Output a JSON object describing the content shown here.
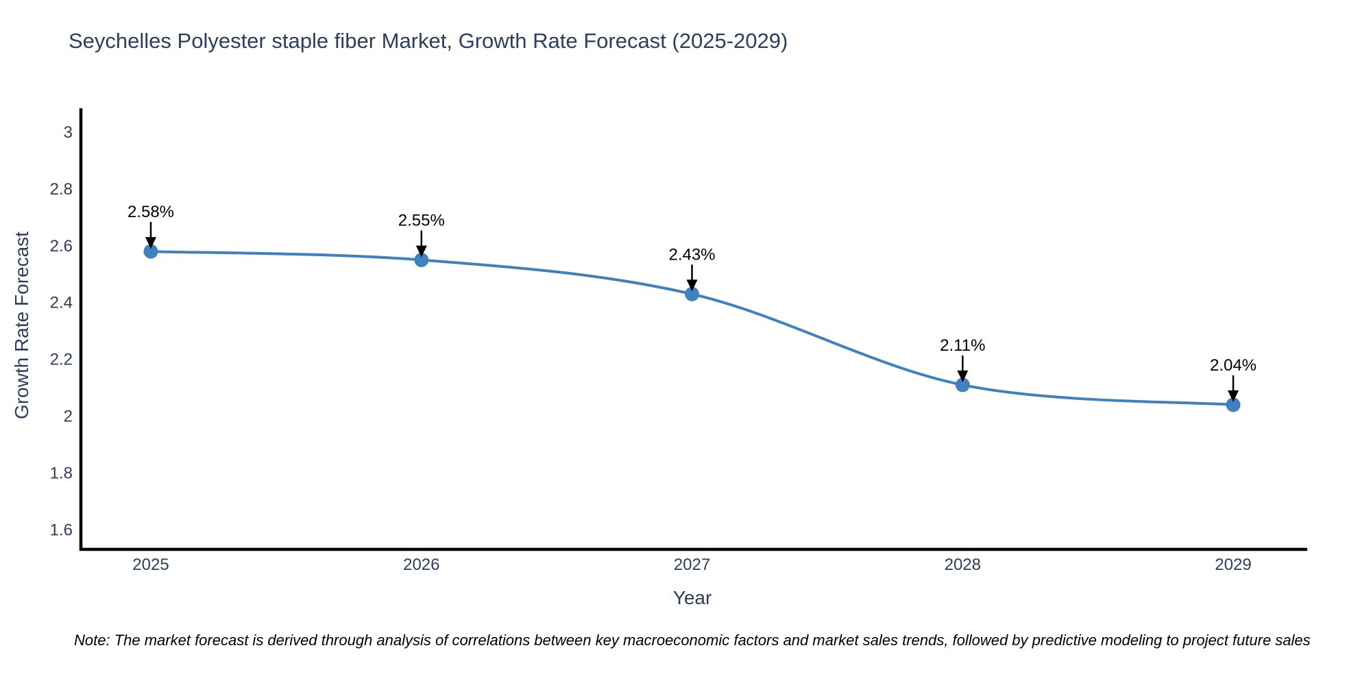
{
  "note": "Note: The market forecast is derived through analysis of correlations between key macroeconomic factors and market sales trends, followed by predictive modeling to project future sales",
  "chart_data": {
    "type": "line",
    "title": "Seychelles Polyester staple fiber Market, Growth Rate Forecast (2025-2029)",
    "xlabel": "Year",
    "ylabel": "Growth Rate Forecast",
    "x": [
      "2025",
      "2026",
      "2027",
      "2028",
      "2029"
    ],
    "series": [
      {
        "name": "Growth Rate Forecast",
        "values": [
          2.58,
          2.55,
          2.43,
          2.11,
          2.04
        ],
        "labels": [
          "2.58%",
          "2.55%",
          "2.43%",
          "2.11%",
          "2.04%"
        ]
      }
    ],
    "ytick_labels": [
      "3",
      "2.8",
      "2.6",
      "2.4",
      "2.2",
      "2",
      "1.8",
      "1.6"
    ],
    "ytick_values": [
      3,
      2.8,
      2.6,
      2.4,
      2.2,
      2,
      1.8,
      1.6
    ],
    "ylim": [
      1.53,
      3.08
    ],
    "grid": false,
    "legend": false,
    "line_shape": "spline",
    "colors": {
      "line": "#3f80bf",
      "marker": "#3f80bf",
      "axis": "#000000",
      "annotation": "#000000",
      "text": "#2a3f5f"
    }
  }
}
